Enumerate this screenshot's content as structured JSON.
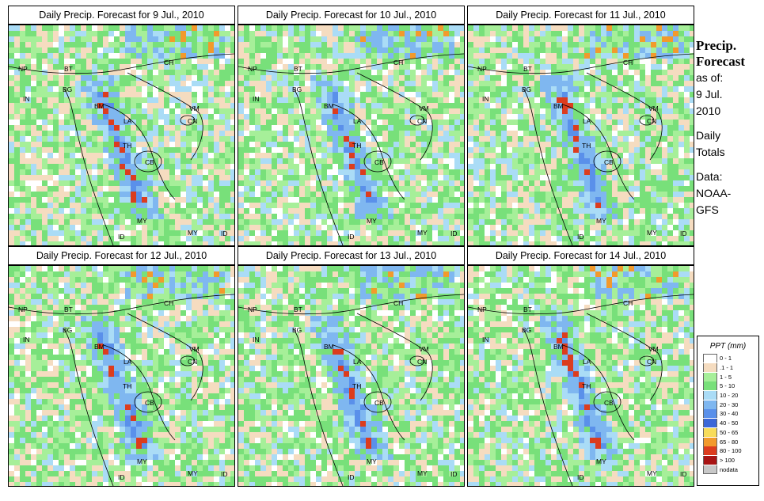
{
  "panels": [
    {
      "title": "Daily Precip. Forecast for  9 Jul., 2010"
    },
    {
      "title": "Daily Precip. Forecast for  10 Jul., 2010"
    },
    {
      "title": "Daily Precip. Forecast for  11 Jul., 2010"
    },
    {
      "title": "Daily Precip. Forecast for  12 Jul., 2010"
    },
    {
      "title": "Daily Precip. Forecast for  13 Jul., 2010"
    },
    {
      "title": "Daily Precip. Forecast for  14 Jul., 2010"
    }
  ],
  "map_labels": [
    "NP",
    "BT",
    "BG",
    "IN",
    "BM",
    "CH",
    "VM",
    "LA",
    "TH",
    "CB",
    "CN",
    "MY",
    "ID",
    "MY",
    "ID"
  ],
  "side": {
    "heading_line1": "Precip.",
    "heading_line2": "Forecast",
    "asof_line1": "as of:",
    "asof_line2": "9 Jul.",
    "asof_line3": "2010",
    "totals_line1": "Daily",
    "totals_line2": "Totals",
    "data_line1": "Data:",
    "data_line2": "NOAA-",
    "data_line3": "GFS"
  },
  "legend": {
    "title": "PPT (mm)",
    "items": [
      {
        "label": "0 - 1",
        "color": "#ffffff"
      },
      {
        "label": ".1 - 1",
        "color": "#f5dcc0"
      },
      {
        "label": "1 - 5",
        "color": "#a6ef99"
      },
      {
        "label": "5 - 10",
        "color": "#78e07a"
      },
      {
        "label": "10 - 20",
        "color": "#aadcf6"
      },
      {
        "label": "20 - 30",
        "color": "#7fb7f0"
      },
      {
        "label": "30 - 40",
        "color": "#5a90ea"
      },
      {
        "label": "40 - 50",
        "color": "#3c68d8"
      },
      {
        "label": "50 - 65",
        "color": "#f7dc5a"
      },
      {
        "label": "65 - 80",
        "color": "#f29a2c"
      },
      {
        "label": "80 - 100",
        "color": "#dc3c1e"
      },
      {
        "label": "> 100",
        "color": "#a81414"
      },
      {
        "label": "nodata",
        "color": "#c8c8c8"
      }
    ]
  }
}
